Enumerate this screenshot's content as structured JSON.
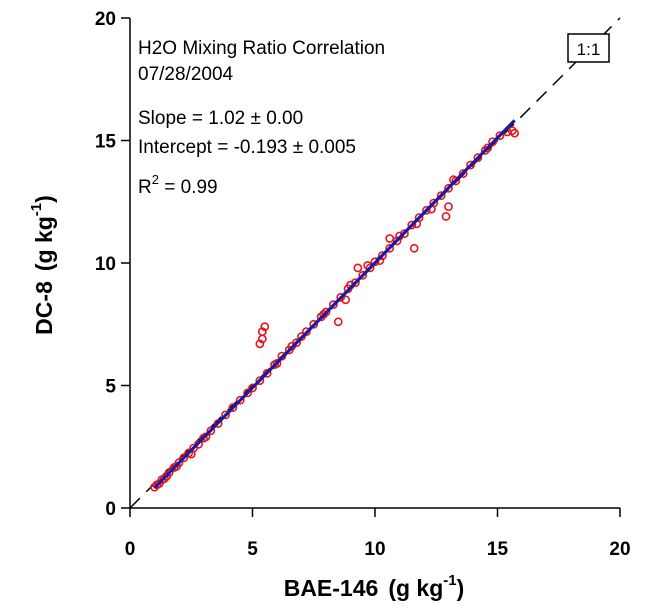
{
  "chart_data": {
    "type": "scatter",
    "title": "H2O Mixing Ratio Correlation",
    "subtitle": "07/28/2004",
    "xlabel": "BAE-146 (g kg-1)",
    "ylabel": "DC-8 (g kg-1)",
    "xlabel_parts": {
      "name": "BAE-146",
      "unit": "(g kg",
      "exp": "-1",
      "close": ")"
    },
    "ylabel_parts": {
      "name": "DC-8",
      "unit": "(g kg",
      "exp": "-1",
      "close": ")"
    },
    "xlim": [
      0,
      20
    ],
    "ylim": [
      0,
      20
    ],
    "xticks": [
      0,
      5,
      10,
      15,
      20
    ],
    "yticks": [
      0,
      5,
      10,
      15,
      20
    ],
    "xtick_labels": [
      "0",
      "5",
      "10",
      "15",
      "20"
    ],
    "ytick_labels": [
      "0",
      "5",
      "10",
      "15",
      "20"
    ],
    "grid": false,
    "legend": "none",
    "annotations": {
      "slope": "Slope = 1.02 ± 0.00",
      "intercept": "Intercept = -0.193 ± 0.005",
      "r2_prefix": "R",
      "r2_exp": "2",
      "r2_value": " = 0.99",
      "one_to_one": "1:1"
    },
    "fit": {
      "slope": 1.02,
      "intercept": -0.193,
      "x_range": [
        1.0,
        15.7
      ]
    },
    "one_to_one_line": {
      "from": [
        0,
        0
      ],
      "to": [
        20,
        20
      ]
    },
    "colors": {
      "points": "#e8141b",
      "fit": "#1a1aa6",
      "one_to_one": "#000000"
    },
    "series": [
      {
        "marker": "open-circle",
        "x": [
          1.0,
          1.1,
          1.2,
          1.3,
          1.5,
          1.6,
          1.8,
          2.0,
          2.2,
          2.4,
          2.6,
          2.8,
          3.0,
          3.3,
          3.6,
          3.9,
          4.2,
          4.5,
          4.8,
          5.0,
          5.3,
          5.6,
          5.9,
          6.2,
          6.5,
          6.8,
          7.0,
          7.2,
          7.5,
          7.8,
          8.0,
          8.3,
          8.6,
          8.9,
          9.2,
          9.5,
          9.8,
          10.0,
          10.3,
          10.6,
          10.9,
          11.2,
          11.5,
          11.8,
          12.1,
          12.4,
          12.7,
          13.0,
          13.3,
          13.6,
          13.9,
          14.2,
          14.5,
          14.8,
          15.1,
          15.4,
          15.6,
          15.7,
          1.4,
          1.9,
          2.5,
          3.1,
          6.0,
          6.6,
          7.9,
          9.0,
          9.7,
          11.0,
          11.7,
          12.3,
          13.2,
          14.6,
          5.3,
          5.4,
          5.4,
          5.5,
          8.5,
          8.8,
          9.3,
          10.2,
          10.6,
          11.6,
          13.0,
          12.9
        ],
        "y": [
          0.85,
          0.95,
          1.0,
          1.15,
          1.3,
          1.45,
          1.65,
          1.85,
          2.05,
          2.25,
          2.45,
          2.6,
          2.85,
          3.15,
          3.45,
          3.8,
          4.1,
          4.4,
          4.7,
          4.9,
          5.2,
          5.5,
          5.85,
          6.2,
          6.45,
          6.75,
          7.0,
          7.2,
          7.5,
          7.8,
          8.0,
          8.3,
          8.6,
          8.95,
          9.2,
          9.5,
          9.8,
          10.05,
          10.3,
          10.6,
          10.9,
          11.2,
          11.55,
          11.85,
          12.15,
          12.45,
          12.75,
          13.05,
          13.35,
          13.65,
          14.0,
          14.3,
          14.6,
          14.95,
          15.2,
          15.35,
          15.4,
          15.3,
          1.2,
          1.7,
          2.2,
          2.9,
          5.9,
          6.6,
          7.9,
          9.1,
          9.9,
          11.1,
          11.6,
          12.2,
          13.4,
          14.7,
          6.7,
          6.9,
          7.2,
          7.4,
          7.6,
          8.5,
          9.8,
          10.1,
          11.0,
          10.6,
          12.3,
          11.9
        ]
      }
    ]
  }
}
